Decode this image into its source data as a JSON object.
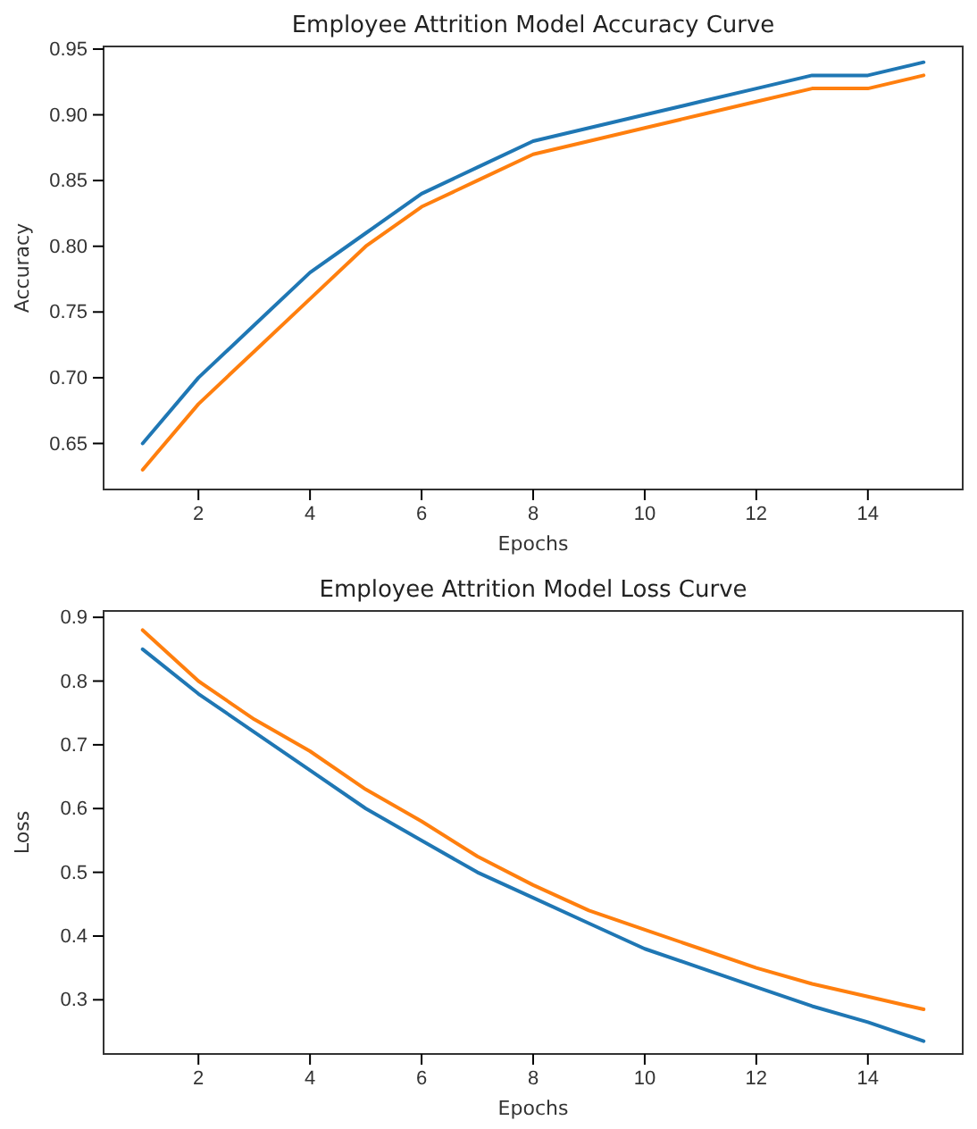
{
  "chart_data": [
    {
      "type": "line",
      "title": "Employee Attrition Model Accuracy Curve",
      "xlabel": "Epochs",
      "ylabel": "Accuracy",
      "x": [
        1,
        2,
        3,
        4,
        5,
        6,
        7,
        8,
        9,
        10,
        11,
        12,
        13,
        14,
        15
      ],
      "xlim": [
        0.3,
        15.7
      ],
      "xticks": [
        2,
        4,
        6,
        8,
        10,
        12,
        14
      ],
      "ylim": [
        0.615,
        0.952
      ],
      "yticks": [
        {
          "value": 0.65,
          "label": "0.65"
        },
        {
          "value": 0.7,
          "label": "0.70"
        },
        {
          "value": 0.75,
          "label": "0.75"
        },
        {
          "value": 0.8,
          "label": "0.80"
        },
        {
          "value": 0.85,
          "label": "0.85"
        },
        {
          "value": 0.9,
          "label": "0.90"
        },
        {
          "value": 0.95,
          "label": "0.95"
        }
      ],
      "grid": false,
      "series": [
        {
          "color": "#1f77b4",
          "values": [
            0.65,
            0.7,
            0.74,
            0.78,
            0.81,
            0.84,
            0.86,
            0.88,
            0.89,
            0.9,
            0.91,
            0.92,
            0.93,
            0.93,
            0.94
          ]
        },
        {
          "color": "#ff7f0e",
          "values": [
            0.63,
            0.68,
            0.72,
            0.76,
            0.8,
            0.83,
            0.85,
            0.87,
            0.88,
            0.89,
            0.9,
            0.91,
            0.92,
            0.92,
            0.93
          ]
        }
      ]
    },
    {
      "type": "line",
      "title": "Employee Attrition Model Loss Curve",
      "xlabel": "Epochs",
      "ylabel": "Loss",
      "x": [
        1,
        2,
        3,
        4,
        5,
        6,
        7,
        8,
        9,
        10,
        11,
        12,
        13,
        14,
        15
      ],
      "xlim": [
        0.3,
        15.7
      ],
      "xticks": [
        2,
        4,
        6,
        8,
        10,
        12,
        14
      ],
      "ylim": [
        0.215,
        0.91
      ],
      "yticks": [
        0.3,
        0.4,
        0.5,
        0.6,
        0.7,
        0.8,
        0.9
      ],
      "grid": false,
      "series": [
        {
          "color": "#1f77b4",
          "values": [
            0.85,
            0.78,
            0.72,
            0.66,
            0.6,
            0.55,
            0.5,
            0.46,
            0.42,
            0.38,
            0.35,
            0.32,
            0.29,
            0.265,
            0.235
          ]
        },
        {
          "color": "#ff7f0e",
          "values": [
            0.88,
            0.8,
            0.74,
            0.69,
            0.63,
            0.58,
            0.525,
            0.48,
            0.44,
            0.41,
            0.38,
            0.35,
            0.325,
            0.305,
            0.285
          ]
        }
      ]
    }
  ]
}
